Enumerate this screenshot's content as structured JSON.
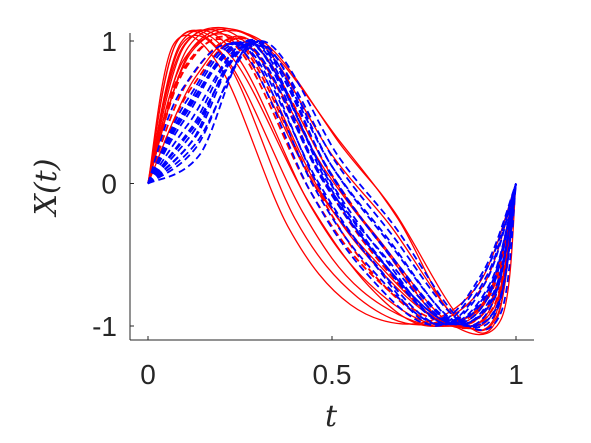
{
  "chart_data": {
    "type": "line",
    "xlabel": "t",
    "ylabel": "X(t)",
    "xlim": [
      0,
      1
    ],
    "ylim": [
      -1,
      1
    ],
    "xticks": [
      0,
      0.5,
      1
    ],
    "xtick_labels": [
      "0",
      "0.5",
      "1"
    ],
    "yticks": [
      -1,
      0,
      1
    ],
    "ytick_labels": [
      "-1",
      "0",
      "1"
    ],
    "grid": false,
    "legend": "none",
    "colors": {
      "series_a": "#ff0000",
      "series_b": "#0000ff",
      "axes": "#262626"
    },
    "series": [
      {
        "color": "#ff0000",
        "style": "solid",
        "x": [
          0,
          0.08,
          0.22,
          0.42,
          0.58,
          0.78,
          0.92,
          1
        ],
        "y": [
          0,
          1.0,
          0.85,
          -0.2,
          -0.75,
          -1.0,
          -0.82,
          0
        ]
      },
      {
        "color": "#ff0000",
        "style": "solid",
        "x": [
          0,
          0.09,
          0.24,
          0.44,
          0.6,
          0.78,
          0.93,
          1
        ],
        "y": [
          0,
          0.99,
          0.9,
          -0.15,
          -0.7,
          -0.99,
          -0.85,
          0
        ]
      },
      {
        "color": "#ff0000",
        "style": "solid",
        "x": [
          0,
          0.1,
          0.25,
          0.45,
          0.62,
          0.8,
          0.94,
          1
        ],
        "y": [
          0,
          0.97,
          0.95,
          0.0,
          -0.55,
          -0.97,
          -0.9,
          0
        ]
      },
      {
        "color": "#ff0000",
        "style": "solid",
        "x": [
          0,
          0.12,
          0.3,
          0.5,
          0.66,
          0.84,
          0.95,
          1
        ],
        "y": [
          0,
          0.95,
          1.0,
          0.2,
          -0.3,
          -0.95,
          -0.92,
          0
        ]
      },
      {
        "color": "#ff0000",
        "style": "solid",
        "x": [
          0,
          0.1,
          0.3,
          0.52,
          0.68,
          0.82,
          0.94,
          1
        ],
        "y": [
          0,
          0.98,
          1.0,
          0.3,
          -0.25,
          -0.9,
          -0.95,
          0
        ]
      },
      {
        "color": "#ff0000",
        "style": "solid",
        "x": [
          0,
          0.07,
          0.2,
          0.38,
          0.55,
          0.74,
          0.9,
          1
        ],
        "y": [
          0,
          0.98,
          0.8,
          -0.3,
          -0.85,
          -0.98,
          -0.7,
          0
        ]
      },
      {
        "color": "#ff0000",
        "style": "solid",
        "x": [
          0,
          0.11,
          0.27,
          0.48,
          0.64,
          0.8,
          0.93,
          1
        ],
        "y": [
          0,
          0.96,
          0.98,
          0.1,
          -0.45,
          -0.96,
          -0.88,
          0
        ]
      },
      {
        "color": "#ff0000",
        "style": "solid",
        "x": [
          0,
          0.13,
          0.28,
          0.5,
          0.63,
          0.82,
          0.96,
          1
        ],
        "y": [
          0,
          0.75,
          1.0,
          0.05,
          -0.4,
          -0.98,
          -0.95,
          0
        ]
      },
      {
        "color": "#ff0000",
        "style": "solid",
        "x": [
          0,
          0.08,
          0.23,
          0.43,
          0.6,
          0.76,
          0.92,
          1
        ],
        "y": [
          0,
          1.0,
          0.88,
          -0.1,
          -0.72,
          -1.0,
          -0.8,
          0
        ]
      },
      {
        "color": "#ff0000",
        "style": "solid",
        "x": [
          0,
          0.1,
          0.26,
          0.46,
          0.62,
          0.8,
          0.94,
          1
        ],
        "y": [
          0,
          0.88,
          0.97,
          -0.02,
          -0.58,
          -0.97,
          -0.87,
          0
        ]
      },
      {
        "color": "#ff0000",
        "style": "solid",
        "x": [
          0,
          0.12,
          0.31,
          0.53,
          0.67,
          0.85,
          0.95,
          1
        ],
        "y": [
          0,
          0.93,
          1.0,
          0.25,
          -0.2,
          -0.95,
          -0.94,
          0
        ]
      },
      {
        "color": "#ff0000",
        "style": "solid",
        "x": [
          0,
          0.09,
          0.22,
          0.4,
          0.57,
          0.75,
          0.91,
          1
        ],
        "y": [
          0,
          0.97,
          0.83,
          -0.25,
          -0.8,
          -0.99,
          -0.72,
          0
        ]
      },
      {
        "color": "#ff0000",
        "style": "dashed",
        "x": [
          0,
          0.1,
          0.25,
          0.45,
          0.6,
          0.78,
          0.92,
          1
        ],
        "y": [
          0,
          0.8,
          0.98,
          0.0,
          -0.6,
          -0.98,
          -0.8,
          0
        ]
      },
      {
        "color": "#ff0000",
        "style": "dashed",
        "x": [
          0,
          0.11,
          0.27,
          0.47,
          0.62,
          0.8,
          0.93,
          1
        ],
        "y": [
          0,
          0.72,
          0.99,
          0.05,
          -0.52,
          -0.97,
          -0.84,
          0
        ]
      },
      {
        "color": "#ff0000",
        "style": "dashed",
        "x": [
          0,
          0.09,
          0.24,
          0.44,
          0.6,
          0.79,
          0.93,
          1
        ],
        "y": [
          0,
          0.78,
          0.96,
          -0.05,
          -0.62,
          -0.96,
          -0.78,
          0
        ]
      },
      {
        "color": "#ff0000",
        "style": "dashed",
        "x": [
          0,
          0.12,
          0.28,
          0.49,
          0.64,
          0.81,
          0.94,
          1
        ],
        "y": [
          0,
          0.68,
          1.0,
          0.1,
          -0.45,
          -0.98,
          -0.86,
          0
        ]
      },
      {
        "color": "#0000ff",
        "style": "dashed",
        "x": [
          0,
          0.1,
          0.27,
          0.47,
          0.62,
          0.8,
          0.93,
          1
        ],
        "y": [
          0,
          0.45,
          0.98,
          0.05,
          -0.5,
          -0.98,
          -0.7,
          0
        ]
      },
      {
        "color": "#0000ff",
        "style": "dashed",
        "x": [
          0,
          0.12,
          0.29,
          0.49,
          0.64,
          0.82,
          0.94,
          1
        ],
        "y": [
          0,
          0.35,
          0.99,
          0.1,
          -0.45,
          -0.97,
          -0.78,
          0
        ]
      },
      {
        "color": "#0000ff",
        "style": "dashed",
        "x": [
          0,
          0.11,
          0.26,
          0.45,
          0.6,
          0.79,
          0.92,
          1
        ],
        "y": [
          0,
          0.6,
          0.97,
          -0.02,
          -0.58,
          -0.99,
          -0.65,
          0
        ]
      },
      {
        "color": "#0000ff",
        "style": "dashed",
        "x": [
          0,
          0.13,
          0.3,
          0.5,
          0.65,
          0.83,
          0.95,
          1
        ],
        "y": [
          0,
          0.25,
          1.0,
          0.12,
          -0.4,
          -0.96,
          -0.85,
          0
        ]
      },
      {
        "color": "#0000ff",
        "style": "dashed",
        "x": [
          0,
          0.1,
          0.28,
          0.48,
          0.63,
          0.8,
          0.93,
          1
        ],
        "y": [
          0,
          0.5,
          0.99,
          0.08,
          -0.48,
          -0.98,
          -0.72,
          0
        ]
      },
      {
        "color": "#0000ff",
        "style": "dashed",
        "x": [
          0,
          0.12,
          0.27,
          0.46,
          0.61,
          0.78,
          0.92,
          1
        ],
        "y": [
          0,
          0.3,
          0.96,
          0.0,
          -0.55,
          -1.0,
          -0.6,
          0
        ]
      },
      {
        "color": "#0000ff",
        "style": "dashed",
        "x": [
          0,
          0.11,
          0.3,
          0.51,
          0.66,
          0.84,
          0.95,
          1
        ],
        "y": [
          0,
          0.55,
          1.0,
          0.15,
          -0.35,
          -0.95,
          -0.88,
          0
        ]
      },
      {
        "color": "#0000ff",
        "style": "dashed",
        "x": [
          0,
          0.14,
          0.29,
          0.48,
          0.62,
          0.81,
          0.94,
          1
        ],
        "y": [
          0,
          0.2,
          0.98,
          0.04,
          -0.5,
          -0.97,
          -0.8,
          0
        ]
      },
      {
        "color": "#0000ff",
        "style": "dashed",
        "x": [
          0,
          0.09,
          0.25,
          0.44,
          0.59,
          0.77,
          0.91,
          1
        ],
        "y": [
          0,
          0.65,
          0.95,
          -0.05,
          -0.62,
          -0.99,
          -0.62,
          0
        ]
      },
      {
        "color": "#0000ff",
        "style": "dashed",
        "x": [
          0,
          0.12,
          0.28,
          0.47,
          0.63,
          0.82,
          0.94,
          1
        ],
        "y": [
          0,
          0.4,
          0.99,
          0.06,
          -0.47,
          -0.98,
          -0.76,
          0
        ]
      },
      {
        "color": "#0000ff",
        "style": "dashed",
        "x": [
          0,
          0.13,
          0.31,
          0.52,
          0.67,
          0.85,
          0.96,
          1
        ],
        "y": [
          0,
          0.28,
          1.0,
          0.18,
          -0.3,
          -0.96,
          -0.9,
          0
        ]
      },
      {
        "color": "#0000ff",
        "style": "dashed",
        "x": [
          0,
          0.1,
          0.26,
          0.46,
          0.61,
          0.79,
          0.92,
          1
        ],
        "y": [
          0,
          0.52,
          0.97,
          0.02,
          -0.54,
          -0.99,
          -0.68,
          0
        ]
      },
      {
        "color": "#0000ff",
        "style": "dashed",
        "x": [
          0,
          0.11,
          0.29,
          0.5,
          0.65,
          0.83,
          0.94,
          1
        ],
        "y": [
          0,
          0.42,
          1.0,
          0.12,
          -0.38,
          -0.97,
          -0.82,
          0
        ]
      },
      {
        "color": "#0000ff",
        "style": "dashed",
        "x": [
          0,
          0.13,
          0.28,
          0.48,
          0.62,
          0.8,
          0.93,
          1
        ],
        "y": [
          0,
          0.33,
          0.98,
          0.07,
          -0.49,
          -0.98,
          -0.74,
          0
        ]
      },
      {
        "color": "#0000ff",
        "style": "dashed",
        "x": [
          0,
          0.1,
          0.27,
          0.47,
          0.62,
          0.81,
          0.93,
          1
        ],
        "y": [
          0,
          0.48,
          0.98,
          0.04,
          -0.5,
          -0.97,
          -0.77,
          0
        ]
      },
      {
        "color": "#0000ff",
        "style": "dashed",
        "x": [
          0,
          0.12,
          0.3,
          0.49,
          0.64,
          0.82,
          0.95,
          1
        ],
        "y": [
          0,
          0.38,
          0.99,
          0.09,
          -0.44,
          -0.96,
          -0.86,
          0
        ]
      }
    ]
  }
}
